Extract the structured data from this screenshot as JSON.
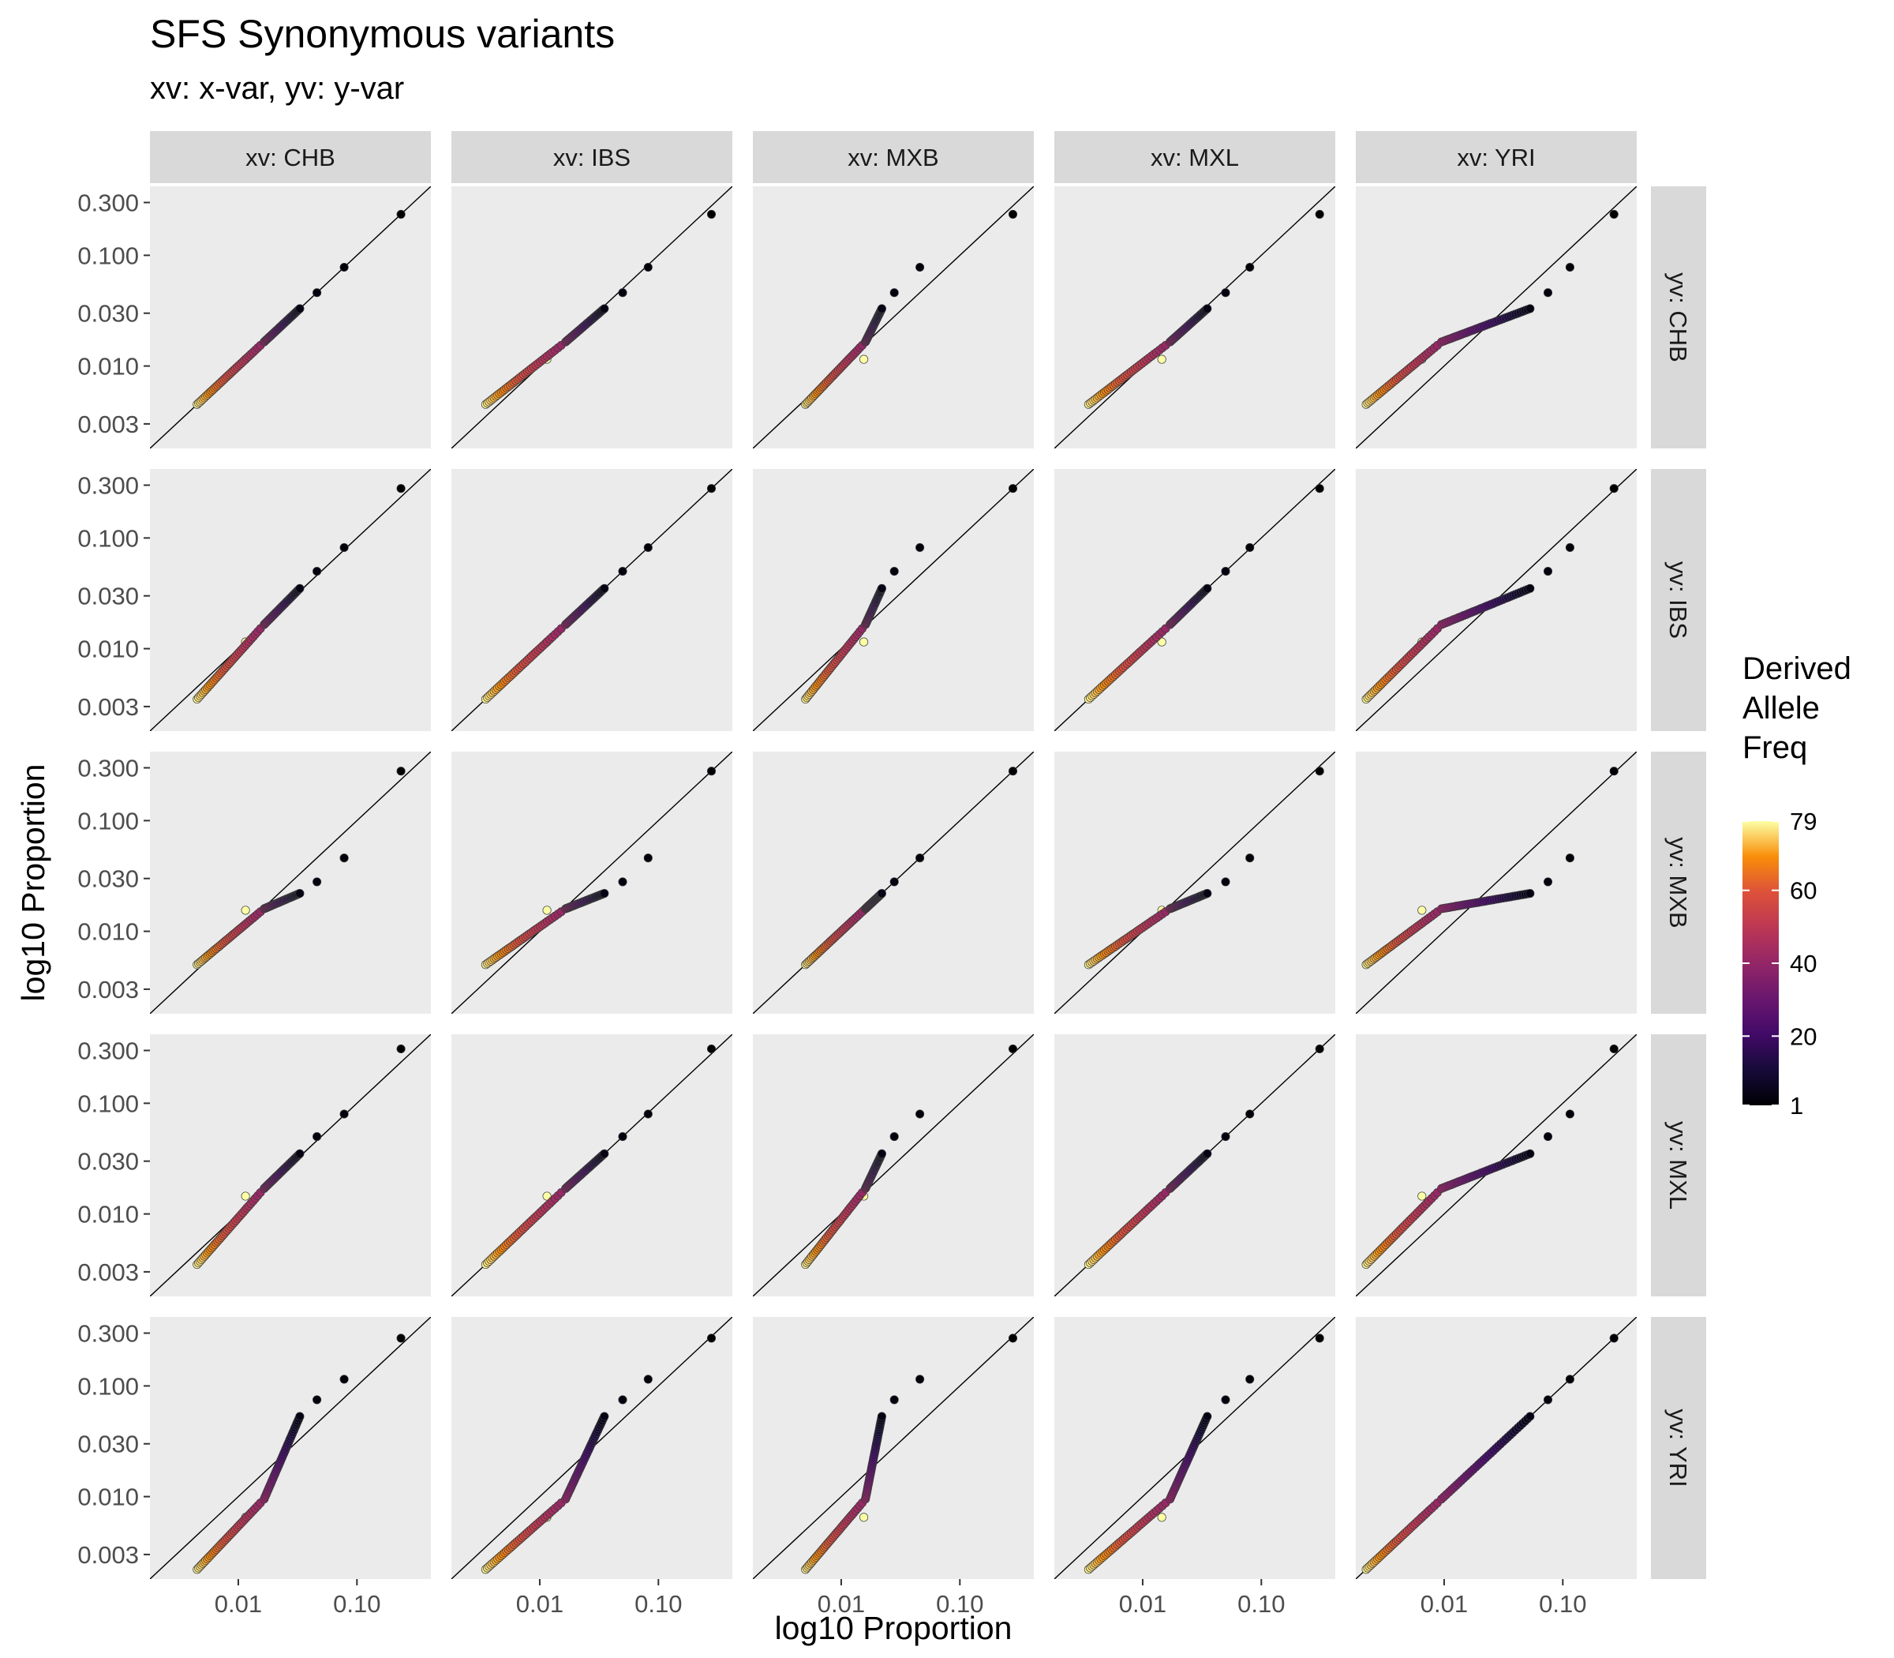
{
  "chart_data": {
    "type": "scatter",
    "title": "SFS Synonymous variants",
    "subtitle": "xv: x-var, yv: y-var",
    "xlabel": "log10  Proportion",
    "ylabel": "log10  Proportion",
    "x_scale": "log10",
    "y_scale": "log10",
    "xlim": [
      0.0018,
      0.42
    ],
    "ylim": [
      0.0018,
      0.42
    ],
    "x_ticks": [
      0.01,
      0.1
    ],
    "x_tick_labels": [
      "0.01",
      "0.10"
    ],
    "y_ticks": [
      0.003,
      0.01,
      0.03,
      0.1,
      0.3
    ],
    "y_tick_labels": [
      "0.003",
      "0.010",
      "0.030",
      "0.100",
      "0.300"
    ],
    "reference_line": "y = x",
    "grid": false,
    "facet_columns": [
      "xv: CHB",
      "xv: IBS",
      "xv: MXB",
      "xv: MXL",
      "xv: YRI"
    ],
    "facet_rows": [
      "yv: CHB",
      "yv: IBS",
      "yv: MXB",
      "yv: MXL",
      "yv: YRI"
    ],
    "populations": [
      "CHB",
      "IBS",
      "MXB",
      "MXL",
      "YRI"
    ],
    "color_variable": "Derived Allele Freq",
    "colorscale": "inferno",
    "color_range": [
      1,
      79
    ],
    "legend": {
      "title_lines": [
        "Derived",
        "Allele",
        "Freq"
      ],
      "tick_values": [
        1,
        20,
        40,
        60,
        79
      ],
      "tick_labels": [
        "1",
        "20",
        "40",
        "60",
        "79"
      ],
      "position": "right"
    },
    "derived_allele_freq_bins": 79,
    "sfs_series": [
      {
        "name": "CHB",
        "p1": 0.235,
        "p2": 0.078,
        "p3": 0.046,
        "p4": 0.033,
        "p_mid": 0.0165,
        "p_tail": 0.011,
        "p_end": 0.0045,
        "p_last": 0.0115
      },
      {
        "name": "IBS",
        "p1": 0.28,
        "p2": 0.082,
        "p3": 0.05,
        "p4": 0.035,
        "p_mid": 0.0165,
        "p_tail": 0.0115,
        "p_end": 0.0035,
        "p_last": 0.0115
      },
      {
        "name": "MXB",
        "p1": 0.28,
        "p2": 0.046,
        "p3": 0.028,
        "p4": 0.022,
        "p_mid": 0.016,
        "p_tail": 0.0065,
        "p_end": 0.005,
        "p_last": 0.0155
      },
      {
        "name": "MXL",
        "p1": 0.31,
        "p2": 0.08,
        "p3": 0.05,
        "p4": 0.035,
        "p_mid": 0.017,
        "p_tail": 0.0085,
        "p_end": 0.0035,
        "p_last": 0.0145
      },
      {
        "name": "YRI",
        "p1": 0.27,
        "p2": 0.115,
        "p3": 0.075,
        "p4": 0.053,
        "p_mid": 0.0095,
        "p_tail": 0.0048,
        "p_end": 0.0022,
        "p_last": 0.0065
      }
    ]
  }
}
